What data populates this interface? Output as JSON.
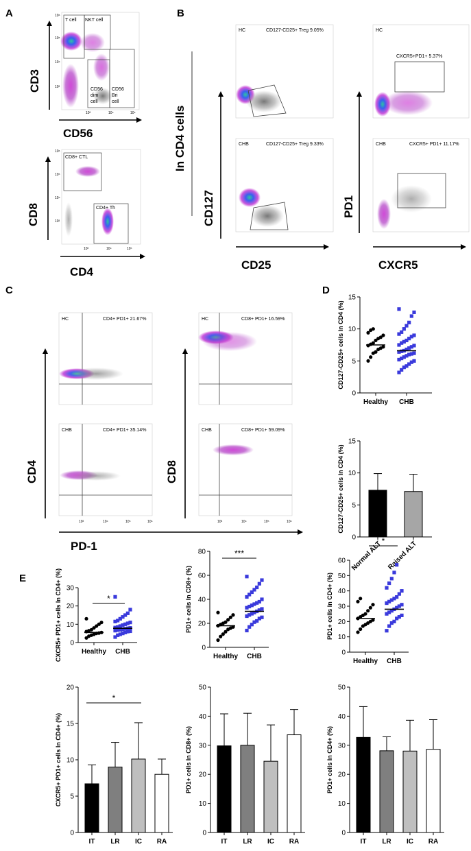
{
  "panels": {
    "A": "A",
    "B": "B",
    "C": "C",
    "D": "D",
    "E": "E"
  },
  "panelA": {
    "top": {
      "gates": [
        "T cell",
        "NKT cell",
        "CD56",
        "dim",
        "cell",
        "CD56",
        "Bri",
        "cell"
      ],
      "ylabel": "CD3",
      "xlabel": "CD56"
    },
    "bottom": {
      "gates": [
        "CD8+ CTL",
        "CD4+ Th"
      ],
      "ylabel": "CD8",
      "xlabel": "CD4"
    }
  },
  "panelB": {
    "side_label": "In CD4 cells",
    "treg_hc": {
      "group": "HC",
      "gate": "CD127-CD25+ Treg 9.05%"
    },
    "treg_chb": {
      "group": "CHB",
      "gate": "CD127-CD25+ Treg 9.33%"
    },
    "pd1_hc": {
      "group": "HC",
      "gate": "CXCR5+PD1+ 5.37%"
    },
    "pd1_chb": {
      "group": "CHB",
      "gate": "CXCR5+ PD1+ 11.17%"
    },
    "ylabel_left": "CD127",
    "xlabel_left": "CD25",
    "ylabel_right": "PD1",
    "xlabel_right": "CXCR5"
  },
  "panelC": {
    "cd4_hc": {
      "group": "HC",
      "gate": "CD4+ PD1+ 21.67%"
    },
    "cd4_chb": {
      "group": "CHB",
      "gate": "CD4+ PD1+ 35.14%"
    },
    "cd8_hc": {
      "group": "HC",
      "gate": "CD8+ PD1+ 16.59%"
    },
    "cd8_chb": {
      "group": "CHB",
      "gate": "CD8+ PD1+ 59.09%"
    },
    "ylabel_left": "CD4",
    "ylabel_right": "CD8",
    "xlabel": "PD-1"
  },
  "flow_ticks": {
    "log": [
      "10³",
      "10⁴",
      "10⁵",
      "10⁶"
    ],
    "y": [
      "10⁶",
      "10⁵",
      "10⁴",
      "10³"
    ]
  },
  "chart_data": [
    {
      "id": "D1",
      "type": "scatter",
      "ylabel": "CD127-CD25+ cells In CD4 (%)",
      "ylim": [
        0,
        15
      ],
      "yticks": [
        "0",
        "5",
        "10",
        "15"
      ],
      "categories": [
        "Healthy",
        "CHB"
      ],
      "series": [
        {
          "name": "Healthy",
          "marker": "circle",
          "color": "#000000",
          "median": 7.5,
          "values": [
            5.0,
            5.6,
            6.2,
            6.4,
            6.8,
            7.0,
            7.2,
            7.4,
            7.6,
            7.8,
            8.2,
            8.5,
            8.7,
            9.0,
            9.4,
            9.8,
            10.0
          ]
        },
        {
          "name": "CHB",
          "marker": "square",
          "color": "#3a3adc",
          "median": 6.6,
          "values": [
            3.2,
            3.6,
            4.0,
            4.2,
            4.5,
            4.8,
            5.0,
            5.2,
            5.4,
            5.6,
            5.8,
            6.0,
            6.1,
            6.2,
            6.4,
            6.5,
            6.6,
            6.8,
            7.0,
            7.2,
            7.4,
            7.5,
            7.8,
            8.0,
            8.2,
            8.5,
            8.8,
            9.0,
            9.2,
            9.5,
            10.0,
            10.5,
            11.0,
            12.0,
            12.6,
            13.1
          ]
        }
      ]
    },
    {
      "id": "D2",
      "type": "bar",
      "ylabel": "CD127-CD25+ cells In CD4 (%)",
      "ylim": [
        0,
        15
      ],
      "yticks": [
        "0",
        "5",
        "10",
        "15"
      ],
      "categories": [
        "Normal ALT",
        "Raised ALT"
      ],
      "values": [
        7.3,
        7.1
      ],
      "errors": [
        2.6,
        2.7
      ],
      "colors": [
        "#000000",
        "#a6a6a6"
      ]
    },
    {
      "id": "E1",
      "type": "scatter",
      "ylabel": "CXCR5+ PD1+ cells In CD4+ (%)",
      "ylim": [
        0,
        30
      ],
      "yticks": [
        "0",
        "10",
        "20",
        "30"
      ],
      "categories": [
        "Healthy",
        "CHB"
      ],
      "significance": "*",
      "series": [
        {
          "name": "Healthy",
          "marker": "circle",
          "color": "#000000",
          "median": 5.5,
          "values": [
            2.5,
            3.5,
            4.0,
            4.5,
            5.0,
            5.2,
            5.5,
            6.0,
            6.5,
            7.0,
            8.0,
            9.0,
            10.0,
            11.0,
            13.0
          ]
        },
        {
          "name": "CHB",
          "marker": "square",
          "color": "#3a3adc",
          "median": 7.8,
          "values": [
            3.0,
            4.0,
            4.5,
            5.0,
            5.5,
            6.0,
            6.2,
            6.5,
            6.8,
            7.0,
            7.2,
            7.5,
            7.8,
            8.0,
            8.2,
            8.5,
            9.0,
            9.5,
            10.0,
            10.5,
            11.0,
            11.5,
            12.0,
            13.0,
            14.0,
            15.0,
            16.0,
            18.0,
            25.0
          ]
        }
      ]
    },
    {
      "id": "E2",
      "type": "scatter",
      "ylabel": "PD1+ cells In CD8+ (%)",
      "ylim": [
        0,
        80
      ],
      "yticks": [
        "0",
        "20",
        "40",
        "60",
        "80"
      ],
      "categories": [
        "Healthy",
        "CHB"
      ],
      "significance": "***",
      "series": [
        {
          "name": "Healthy",
          "marker": "circle",
          "color": "#000000",
          "median": 18,
          "values": [
            6,
            9,
            11,
            13,
            15,
            16,
            17,
            18,
            19,
            20,
            21,
            23,
            25,
            27,
            29
          ]
        },
        {
          "name": "CHB",
          "marker": "square",
          "color": "#3a3adc",
          "median": 30,
          "values": [
            14,
            17,
            19,
            21,
            22,
            24,
            25,
            26,
            27,
            28,
            29,
            30,
            31,
            32,
            33,
            34,
            35,
            36,
            37,
            38,
            40,
            42,
            44,
            46,
            48,
            50,
            53,
            56,
            59
          ]
        }
      ]
    },
    {
      "id": "E3",
      "type": "scatter",
      "ylabel": "PD1+ cells In CD4+ (%)",
      "ylim": [
        0,
        60
      ],
      "yticks": [
        "0",
        "10",
        "20",
        "30",
        "40",
        "50",
        "60"
      ],
      "categories": [
        "Healthy",
        "CHB"
      ],
      "significance": "*",
      "series": [
        {
          "name": "Healthy",
          "marker": "circle",
          "color": "#000000",
          "median": 22,
          "values": [
            13,
            15,
            17,
            18,
            19,
            20,
            21,
            22,
            23,
            24,
            25,
            27,
            29,
            31,
            33,
            35
          ]
        },
        {
          "name": "CHB",
          "marker": "square",
          "color": "#3a3adc",
          "median": 28,
          "values": [
            14,
            17,
            19,
            20,
            22,
            23,
            24,
            25,
            26,
            27,
            28,
            29,
            30,
            31,
            32,
            33,
            34,
            35,
            36,
            38,
            40,
            42,
            45,
            48,
            52,
            57
          ]
        }
      ]
    },
    {
      "id": "E4",
      "type": "bar",
      "ylabel": "CXCR5+ PD1+ cells In CD4+ (%)",
      "ylim": [
        0,
        20
      ],
      "yticks": [
        "0",
        "5",
        "10",
        "15",
        "20"
      ],
      "categories": [
        "IT",
        "LR",
        "IC",
        "RA"
      ],
      "significance": "*",
      "values": [
        6.7,
        9.0,
        10.1,
        8.0
      ],
      "errors": [
        2.6,
        3.4,
        5.0,
        2.1
      ],
      "colors": [
        "#000000",
        "#7f7f7f",
        "#bfbfbf",
        "#ffffff"
      ]
    },
    {
      "id": "E5",
      "type": "bar",
      "ylabel": "PD1+ cells In CD8+ (%)",
      "ylim": [
        0,
        50
      ],
      "yticks": [
        "0",
        "10",
        "20",
        "30",
        "40",
        "50"
      ],
      "categories": [
        "IT",
        "LR",
        "IC",
        "RA"
      ],
      "values": [
        29.8,
        30.0,
        24.5,
        33.6
      ],
      "errors": [
        11.0,
        11.0,
        12.5,
        8.7
      ],
      "colors": [
        "#000000",
        "#7f7f7f",
        "#bfbfbf",
        "#ffffff"
      ]
    },
    {
      "id": "E6",
      "type": "bar",
      "ylabel": "PD1+ cells In CD4+ (%)",
      "ylim": [
        0,
        50
      ],
      "yticks": [
        "0",
        "10",
        "20",
        "30",
        "40",
        "50"
      ],
      "categories": [
        "IT",
        "LR",
        "IC",
        "RA"
      ],
      "values": [
        32.7,
        28.1,
        28.0,
        28.6
      ],
      "errors": [
        10.6,
        4.8,
        10.6,
        10.2
      ],
      "colors": [
        "#000000",
        "#7f7f7f",
        "#bfbfbf",
        "#ffffff"
      ]
    }
  ]
}
